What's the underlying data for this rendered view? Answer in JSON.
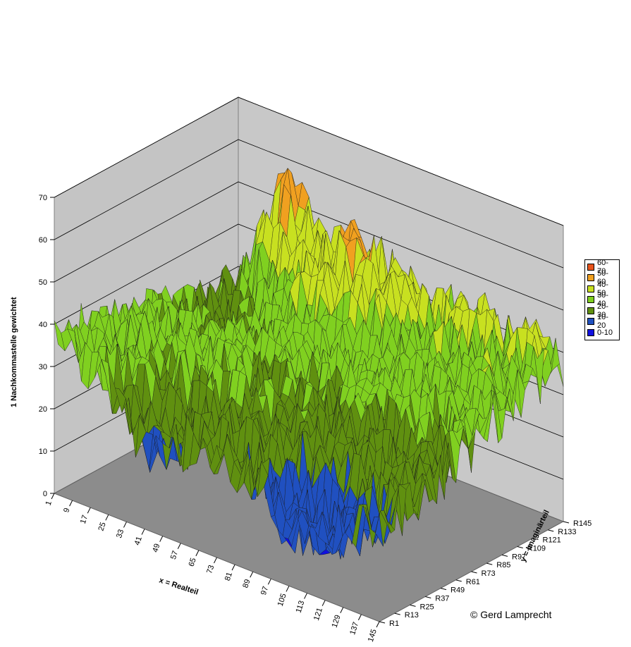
{
  "chart_data": {
    "type": "surface",
    "zlabel": "1 Nachkommastelle gewichtet",
    "xlabel": "x = Realteil",
    "ylabel": "y = Imaginärteil",
    "zlim": [
      0,
      70
    ],
    "z_ticks": [
      "0",
      "10",
      "20",
      "30",
      "40",
      "50",
      "60",
      "70"
    ],
    "x_ticks": [
      "1",
      "9",
      "17",
      "25",
      "33",
      "41",
      "49",
      "57",
      "65",
      "73",
      "81",
      "89",
      "97",
      "105",
      "113",
      "121",
      "129",
      "137",
      "145"
    ],
    "y_ticks": [
      "R1",
      "R13",
      "R25",
      "R37",
      "R49",
      "R61",
      "R73",
      "R85",
      "R97",
      "R109",
      "R121",
      "R133",
      "R145"
    ],
    "grid": true,
    "legend_placement": "right",
    "legend": [
      {
        "label": "60-70",
        "color": "#e8541c"
      },
      {
        "label": "50-60",
        "color": "#f0a020"
      },
      {
        "label": "40-50",
        "color": "#c8e020"
      },
      {
        "label": "30-40",
        "color": "#80d020"
      },
      {
        "label": "20-30",
        "color": "#609010"
      },
      {
        "label": "10-20",
        "color": "#2050c0"
      },
      {
        "label": "0-10",
        "color": "#1010e0"
      }
    ]
  },
  "copyright": "© Gerd Lamprecht"
}
